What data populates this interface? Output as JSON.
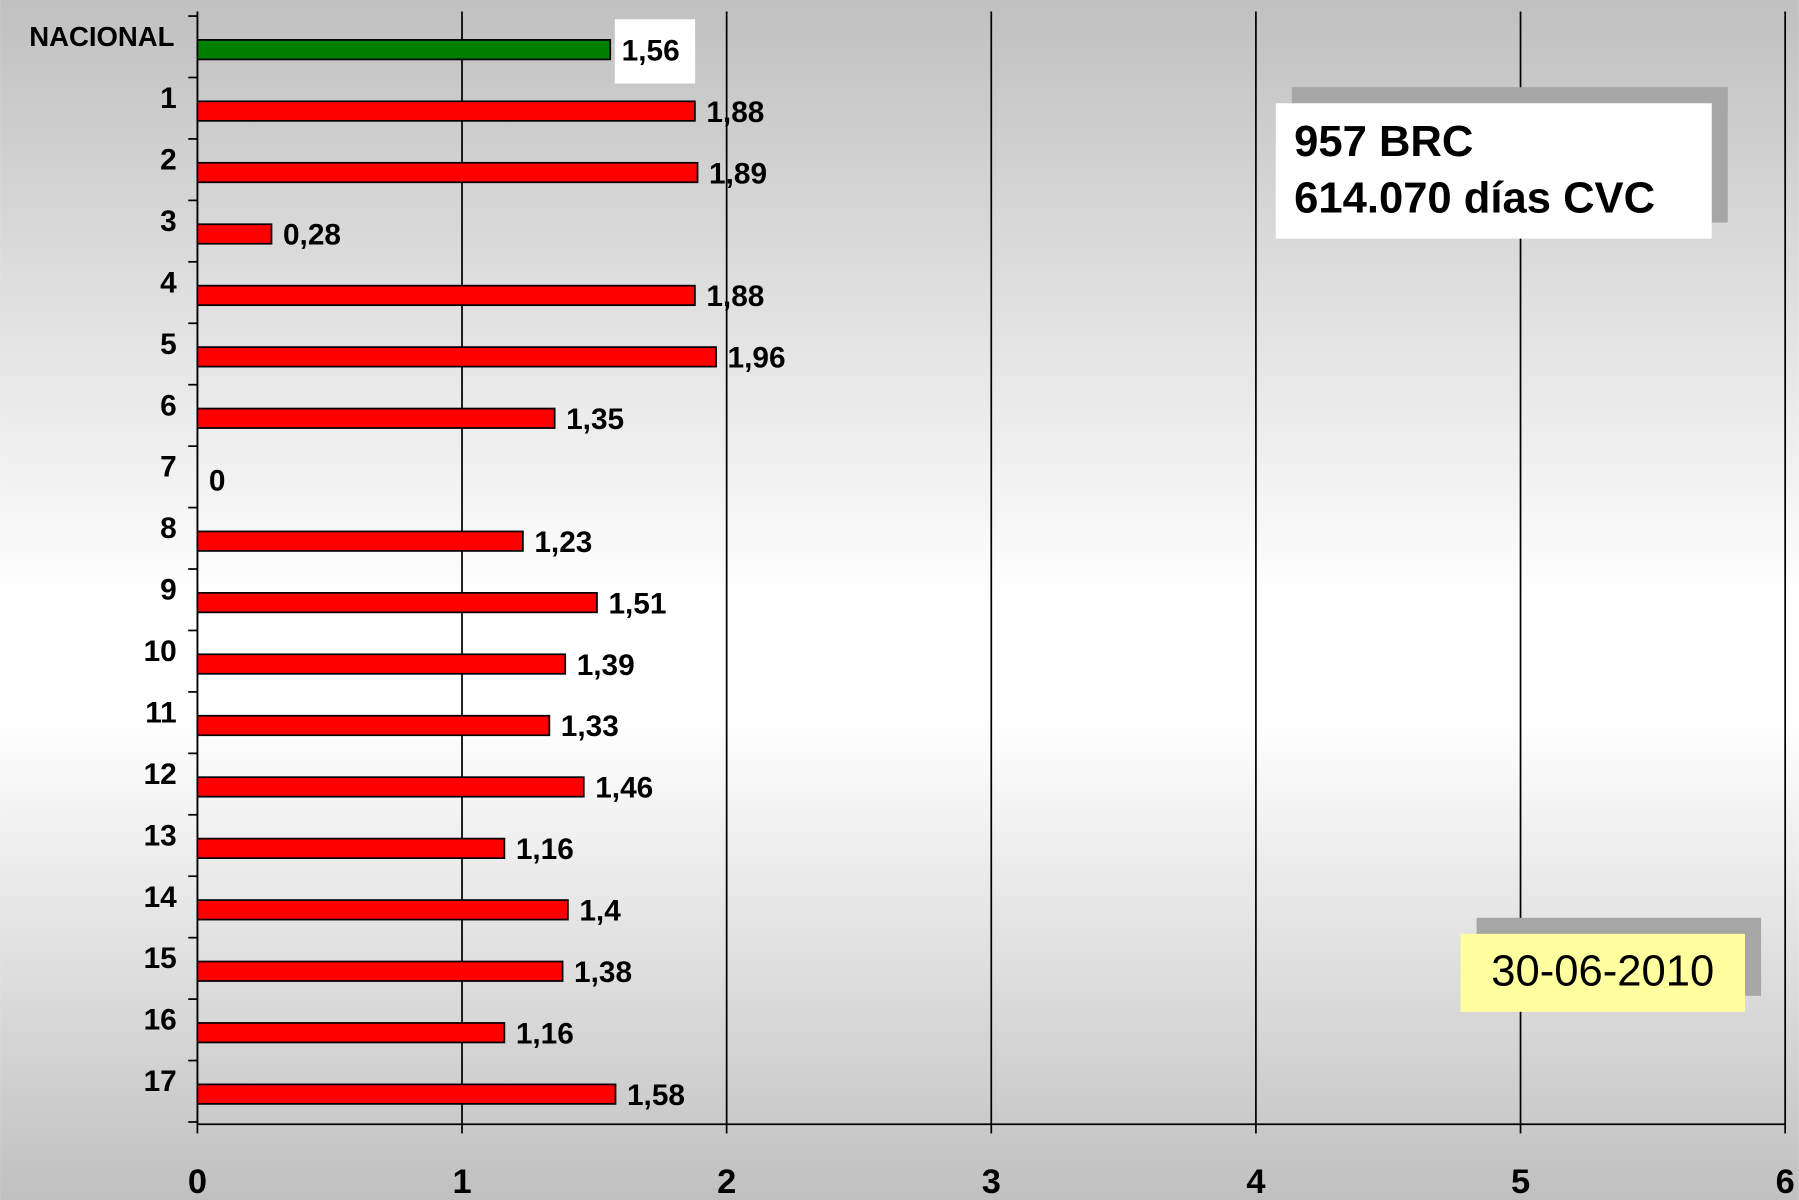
{
  "chart_data": {
    "type": "bar",
    "orientation": "horizontal",
    "categories": [
      "NACIONAL",
      "1",
      "2",
      "3",
      "4",
      "5",
      "6",
      "7",
      "8",
      "9",
      "10",
      "11",
      "12",
      "13",
      "14",
      "15",
      "16",
      "17"
    ],
    "values": [
      1.56,
      1.88,
      1.89,
      0.28,
      1.88,
      1.96,
      1.35,
      0,
      1.23,
      1.51,
      1.39,
      1.33,
      1.46,
      1.16,
      1.4,
      1.38,
      1.16,
      1.58
    ],
    "value_labels": [
      "1,56",
      "1,88",
      "1,89",
      "0,28",
      "1,88",
      "1,96",
      "1,35",
      "0",
      "1,23",
      "1,51",
      "1,39",
      "1,33",
      "1,46",
      "1,16",
      "1,4",
      "1,38",
      "1,16",
      "1,58"
    ],
    "colors": [
      "#008000",
      "#ff0000",
      "#ff0000",
      "#ff0000",
      "#ff0000",
      "#ff0000",
      "#ff0000",
      "#ff0000",
      "#ff0000",
      "#ff0000",
      "#ff0000",
      "#ff0000",
      "#ff0000",
      "#ff0000",
      "#ff0000",
      "#ff0000",
      "#ff0000",
      "#ff0000"
    ],
    "xlim": [
      0,
      6
    ],
    "xticks": [
      0,
      1,
      2,
      3,
      4,
      5,
      6
    ],
    "grid": true,
    "annotations": [
      "957 BRC",
      "614.070 días CVC",
      "30-06-2010"
    ]
  }
}
